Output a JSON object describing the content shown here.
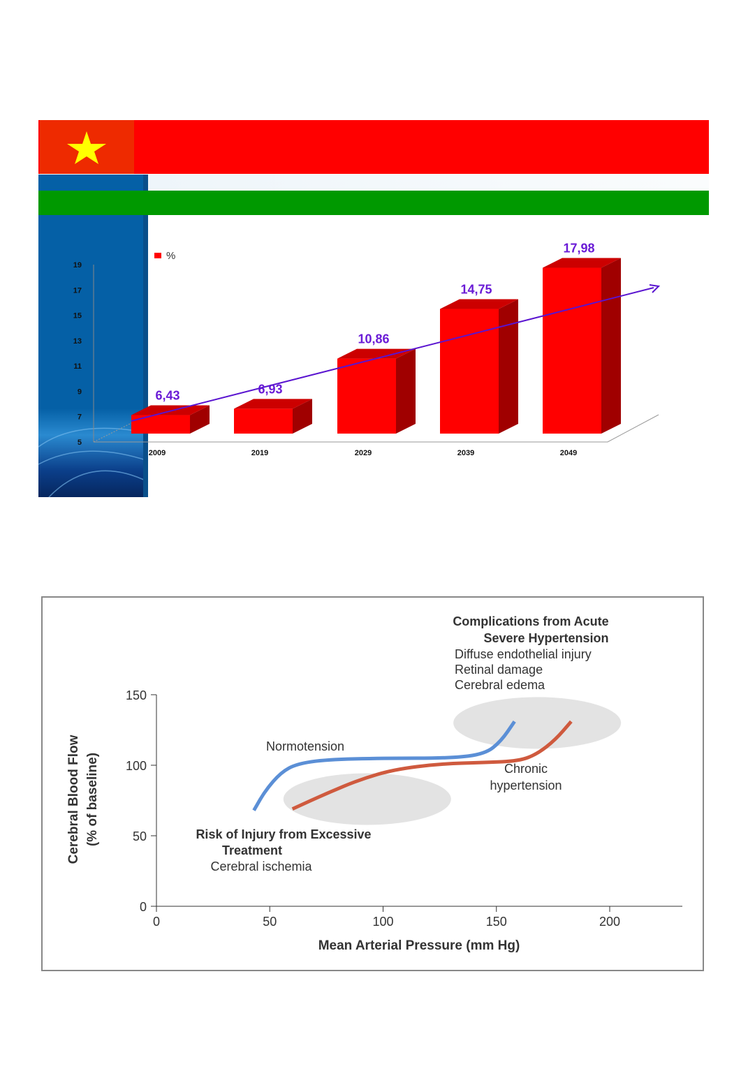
{
  "colors": {
    "flag_red": "#ee2a00",
    "banner_red": "#ff0000",
    "green": "#009900",
    "sidebar_blue": "#0560a6",
    "bar_front": "#ff0000",
    "bar_top": "#cc0000",
    "bar_side": "#a00000",
    "label_purple": "#6a1bd6",
    "trend": "#5a14d0",
    "normo": "#5b8fd6",
    "chronic": "#cf5a3e"
  },
  "chart_data": [
    {
      "type": "bar",
      "title": "",
      "legend": "%",
      "legend_position": "top-left",
      "categories": [
        "2009",
        "2019",
        "2029",
        "2039",
        "2049"
      ],
      "values": [
        6.43,
        6.93,
        10.86,
        14.75,
        17.98
      ],
      "value_labels": [
        "6,43",
        "6,93",
        "10,86",
        "14,75",
        "17,98"
      ],
      "yticks": [
        "5",
        "7",
        "9",
        "11",
        "13",
        "15",
        "17",
        "19"
      ],
      "ylim": [
        5,
        19
      ],
      "trendline": true,
      "xlabel": "",
      "ylabel": ""
    },
    {
      "type": "line",
      "xlabel": "Mean Arterial Pressure (mm Hg)",
      "ylabel": "Cerebral Blood Flow",
      "ylabel2": "(% of baseline)",
      "xlim": [
        0,
        235
      ],
      "ylim": [
        0,
        150
      ],
      "xticks": [
        "0",
        "50",
        "100",
        "150",
        "200"
      ],
      "yticks": [
        "0",
        "50",
        "100",
        "150"
      ],
      "series": [
        {
          "name": "Normotension",
          "x": [
            43,
            48,
            55,
            62,
            75,
            100,
            130,
            145,
            152,
            158
          ],
          "y": [
            68,
            82,
            95,
            101,
            104,
            105,
            105,
            108,
            117,
            131
          ]
        },
        {
          "name_line1": "Chronic",
          "name_line2": "hypertension",
          "x": [
            60,
            75,
            90,
            105,
            125,
            145,
            160,
            168,
            176,
            183
          ],
          "y": [
            69,
            80,
            90,
            97,
            101,
            102,
            103,
            108,
            118,
            131
          ]
        }
      ],
      "annotations": {
        "top_title1": "Complications from Acute",
        "top_title2": "Severe Hypertension",
        "top_items": [
          "Diffuse endothelial injury",
          "Retinal damage",
          "Cerebral edema"
        ],
        "bottom_title1": "Risk of Injury from Excessive",
        "bottom_title2": "Treatment",
        "bottom_items": [
          "Cerebral ischemia"
        ]
      }
    }
  ]
}
